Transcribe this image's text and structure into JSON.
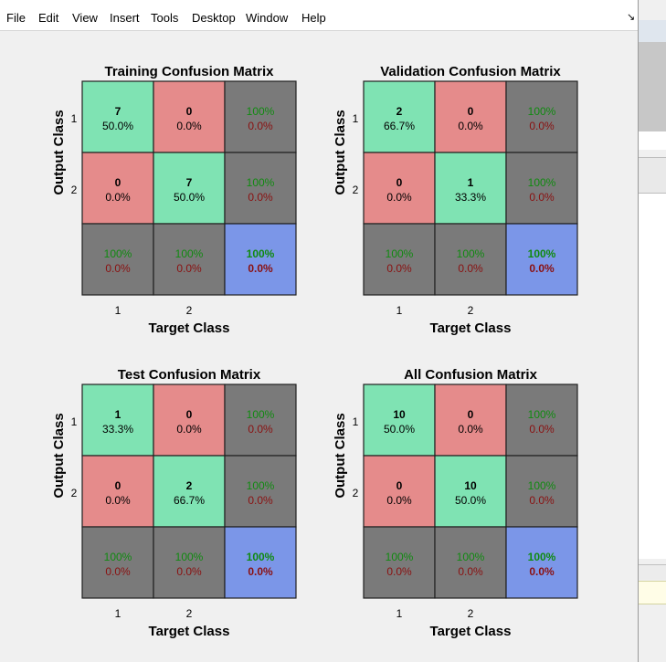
{
  "menu": {
    "items": [
      "File",
      "Edit",
      "View",
      "Insert",
      "Tools",
      "Desktop",
      "Window",
      "Help"
    ]
  },
  "colors": {
    "correct": "#7fe3b3",
    "incorrect": "#e58b8b",
    "summary": "#7a7a7a",
    "overall": "#7b96e8",
    "pct_good": "#108a10",
    "pct_bad": "#8a1010"
  },
  "chart_data": [
    {
      "type": "table",
      "title": "Training Confusion Matrix",
      "xlabel": "Target Class",
      "ylabel": "Output Class",
      "classes": [
        "1",
        "2"
      ],
      "counts": [
        [
          7,
          0
        ],
        [
          0,
          7
        ]
      ],
      "cell_percents": [
        [
          "50.0%",
          "0.0%"
        ],
        [
          "0.0%",
          "50.0%"
        ]
      ],
      "row_summary": [
        [
          "100%",
          "0.0%"
        ],
        [
          "100%",
          "0.0%"
        ]
      ],
      "col_summary": [
        [
          "100%",
          "0.0%"
        ],
        [
          "100%",
          "0.0%"
        ]
      ],
      "overall": [
        "100%",
        "0.0%"
      ]
    },
    {
      "type": "table",
      "title": "Validation Confusion Matrix",
      "xlabel": "Target Class",
      "ylabel": "Output Class",
      "classes": [
        "1",
        "2"
      ],
      "counts": [
        [
          2,
          0
        ],
        [
          0,
          1
        ]
      ],
      "cell_percents": [
        [
          "66.7%",
          "0.0%"
        ],
        [
          "0.0%",
          "33.3%"
        ]
      ],
      "row_summary": [
        [
          "100%",
          "0.0%"
        ],
        [
          "100%",
          "0.0%"
        ]
      ],
      "col_summary": [
        [
          "100%",
          "0.0%"
        ],
        [
          "100%",
          "0.0%"
        ]
      ],
      "overall": [
        "100%",
        "0.0%"
      ]
    },
    {
      "type": "table",
      "title": "Test Confusion Matrix",
      "xlabel": "Target Class",
      "ylabel": "Output Class",
      "classes": [
        "1",
        "2"
      ],
      "counts": [
        [
          1,
          0
        ],
        [
          0,
          2
        ]
      ],
      "cell_percents": [
        [
          "33.3%",
          "0.0%"
        ],
        [
          "0.0%",
          "66.7%"
        ]
      ],
      "row_summary": [
        [
          "100%",
          "0.0%"
        ],
        [
          "100%",
          "0.0%"
        ]
      ],
      "col_summary": [
        [
          "100%",
          "0.0%"
        ],
        [
          "100%",
          "0.0%"
        ]
      ],
      "overall": [
        "100%",
        "0.0%"
      ]
    },
    {
      "type": "table",
      "title": "All Confusion Matrix",
      "xlabel": "Target Class",
      "ylabel": "Output Class",
      "classes": [
        "1",
        "2"
      ],
      "counts": [
        [
          10,
          0
        ],
        [
          0,
          10
        ]
      ],
      "cell_percents": [
        [
          "50.0%",
          "0.0%"
        ],
        [
          "0.0%",
          "50.0%"
        ]
      ],
      "row_summary": [
        [
          "100%",
          "0.0%"
        ],
        [
          "100%",
          "0.0%"
        ]
      ],
      "col_summary": [
        [
          "100%",
          "0.0%"
        ],
        [
          "100%",
          "0.0%"
        ]
      ],
      "overall": [
        "100%",
        "0.0%"
      ]
    }
  ]
}
